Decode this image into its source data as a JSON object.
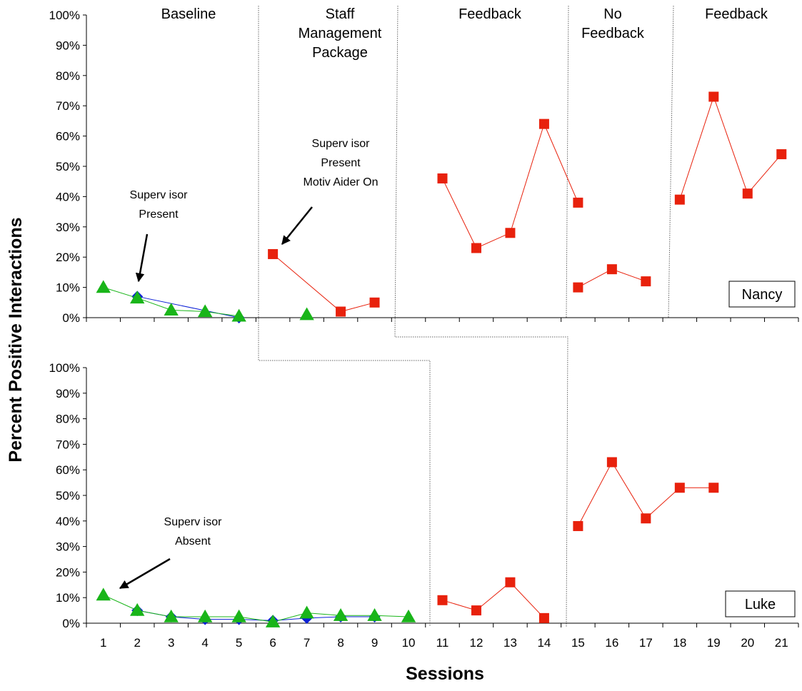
{
  "chart_data": {
    "type": "line",
    "ylabel": "Percent Positive Interactions",
    "xlabel": "Sessions",
    "x_ticks": [
      "1",
      "2",
      "3",
      "4",
      "5",
      "6",
      "7",
      "8",
      "9",
      "10",
      "11",
      "12",
      "13",
      "14",
      "15",
      "16",
      "17",
      "18",
      "19",
      "20",
      "21"
    ],
    "y_ticks": [
      "0%",
      "10%",
      "20%",
      "30%",
      "40%",
      "50%",
      "60%",
      "70%",
      "80%",
      "90%",
      "100%"
    ],
    "ylim": [
      0,
      100
    ],
    "xlim": [
      0.5,
      21.5
    ],
    "phases": [
      {
        "lines": [
          "Baseline"
        ]
      },
      {
        "lines": [
          "Staff",
          "Management",
          "Package"
        ]
      },
      {
        "lines": [
          "Feedback"
        ]
      },
      {
        "lines": [
          "No",
          "Feedback"
        ]
      },
      {
        "lines": [
          "Feedback"
        ]
      }
    ],
    "panels": [
      {
        "participant": "Nancy",
        "series": [
          {
            "marker": "diamond",
            "color": "#0b1fd6",
            "points": [
              [
                2,
                7
              ],
              [
                5,
                0
              ]
            ]
          },
          {
            "marker": "triangle",
            "color": "#19b519",
            "points": [
              [
                1,
                10
              ],
              [
                2,
                6.5
              ],
              [
                3,
                2.5
              ],
              [
                4,
                2
              ],
              [
                5,
                0.5
              ]
            ]
          },
          {
            "marker": "triangle",
            "color": "#19b519",
            "points": [
              [
                7,
                1
              ]
            ]
          },
          {
            "marker": "square",
            "color": "#e8210c",
            "points": [
              [
                6,
                21
              ],
              [
                8,
                2
              ],
              [
                9,
                5
              ]
            ]
          },
          {
            "marker": "square",
            "color": "#e8210c",
            "points": [
              [
                11,
                46
              ],
              [
                12,
                23
              ],
              [
                13,
                28
              ],
              [
                14,
                64
              ],
              [
                15,
                38
              ]
            ]
          },
          {
            "marker": "square",
            "color": "#e8210c",
            "points": [
              [
                15,
                10
              ],
              [
                16,
                16
              ],
              [
                17,
                12
              ]
            ]
          },
          {
            "marker": "square",
            "color": "#e8210c",
            "points": [
              [
                18,
                39
              ],
              [
                19,
                73
              ],
              [
                20,
                41
              ],
              [
                21,
                54
              ]
            ]
          }
        ],
        "annotations": [
          {
            "lines": [
              "Superv isor",
              "Present"
            ]
          },
          {
            "lines": [
              "Superv isor",
              "Present",
              "Motiv Aider On"
            ]
          }
        ]
      },
      {
        "participant": "Luke",
        "series": [
          {
            "marker": "diamond",
            "color": "#0b1fd6",
            "points": [
              [
                2,
                5
              ],
              [
                3,
                2.5
              ],
              [
                4,
                1.5
              ],
              [
                5,
                1.5
              ],
              [
                6,
                1
              ],
              [
                7,
                2
              ],
              [
                8,
                2.5
              ],
              [
                9,
                2.5
              ]
            ]
          },
          {
            "marker": "triangle",
            "color": "#19b519",
            "points": [
              [
                1,
                11
              ],
              [
                2,
                5
              ],
              [
                3,
                2.5
              ],
              [
                4,
                2.5
              ],
              [
                5,
                2.5
              ],
              [
                6,
                0.5
              ],
              [
                7,
                4
              ],
              [
                8,
                3
              ],
              [
                9,
                3
              ],
              [
                10,
                2.5
              ]
            ]
          },
          {
            "marker": "square",
            "color": "#e8210c",
            "points": [
              [
                11,
                9
              ],
              [
                12,
                5
              ],
              [
                13,
                16
              ],
              [
                14,
                2
              ]
            ]
          },
          {
            "marker": "square",
            "color": "#e8210c",
            "points": [
              [
                15,
                38
              ],
              [
                16,
                63
              ],
              [
                17,
                41
              ],
              [
                18,
                53
              ],
              [
                19,
                53
              ]
            ]
          }
        ],
        "annotations": [
          {
            "lines": [
              "Superv isor",
              "Absent"
            ]
          }
        ]
      }
    ]
  }
}
